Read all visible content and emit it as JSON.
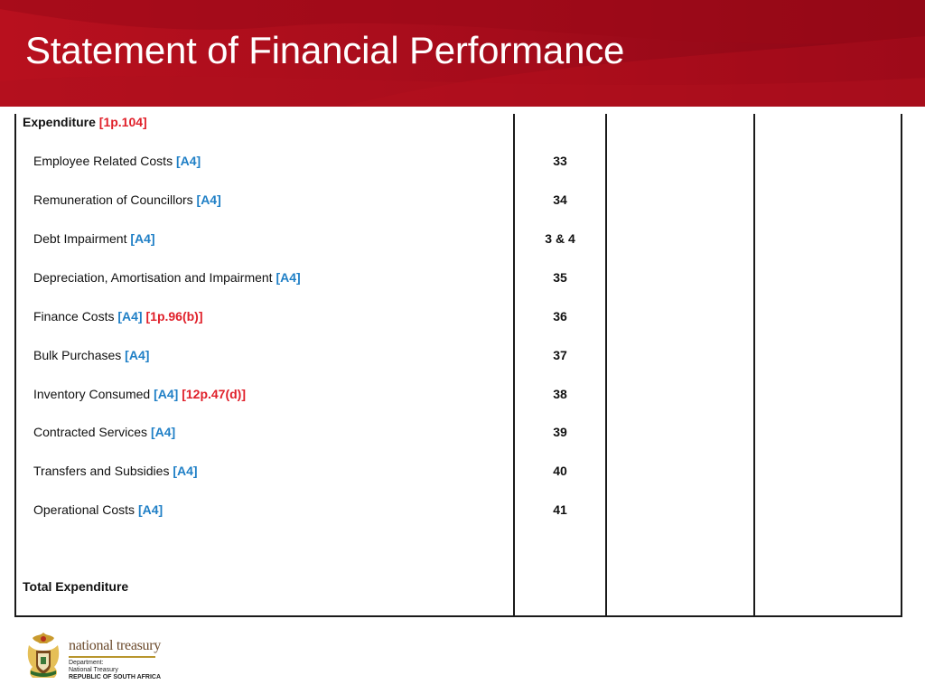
{
  "header": {
    "title": "Statement of Financial Performance"
  },
  "table": {
    "section": {
      "label": "Expenditure",
      "ref": "[1p.104]"
    },
    "rows": [
      {
        "label": "Employee Related Costs",
        "ref_a": "[A4]",
        "ref_b": "",
        "note": "33"
      },
      {
        "label": "Remuneration of Councillors",
        "ref_a": "[A4]",
        "ref_b": "",
        "note": "34"
      },
      {
        "label": "Debt Impairment",
        "ref_a": "[A4]",
        "ref_b": "",
        "note": "3 & 4"
      },
      {
        "label": "Depreciation, Amortisation and Impairment",
        "ref_a": "[A4]",
        "ref_b": "",
        "note": "35"
      },
      {
        "label": "Finance Costs",
        "ref_a": "[A4]",
        "ref_b": "[1p.96(b)]",
        "note": "36"
      },
      {
        "label": "Bulk Purchases",
        "ref_a": "[A4]",
        "ref_b": "",
        "note": "37"
      },
      {
        "label": "Inventory Consumed",
        "ref_a": "[A4]",
        "ref_b": "[12p.47(d)]",
        "note": "38"
      },
      {
        "label": "Contracted Services",
        "ref_a": "[A4]",
        "ref_b": "",
        "note": "39"
      },
      {
        "label": "Transfers and Subsidies",
        "ref_a": "[A4]",
        "ref_b": "",
        "note": "40"
      },
      {
        "label": "Operational Costs",
        "ref_a": "[A4]",
        "ref_b": "",
        "note": "41"
      }
    ],
    "total": {
      "label": "Total Expenditure"
    }
  },
  "footer": {
    "brand": "national treasury",
    "line1": "Department:",
    "line2": "National Treasury",
    "line3": "REPUBLIC OF SOUTH AFRICA",
    "emblem_icon": "coat-of-arms-icon"
  },
  "colors": {
    "header_red": "#a80d1c",
    "ref_blue": "#1f7fc6",
    "ref_red": "#e0202a"
  }
}
